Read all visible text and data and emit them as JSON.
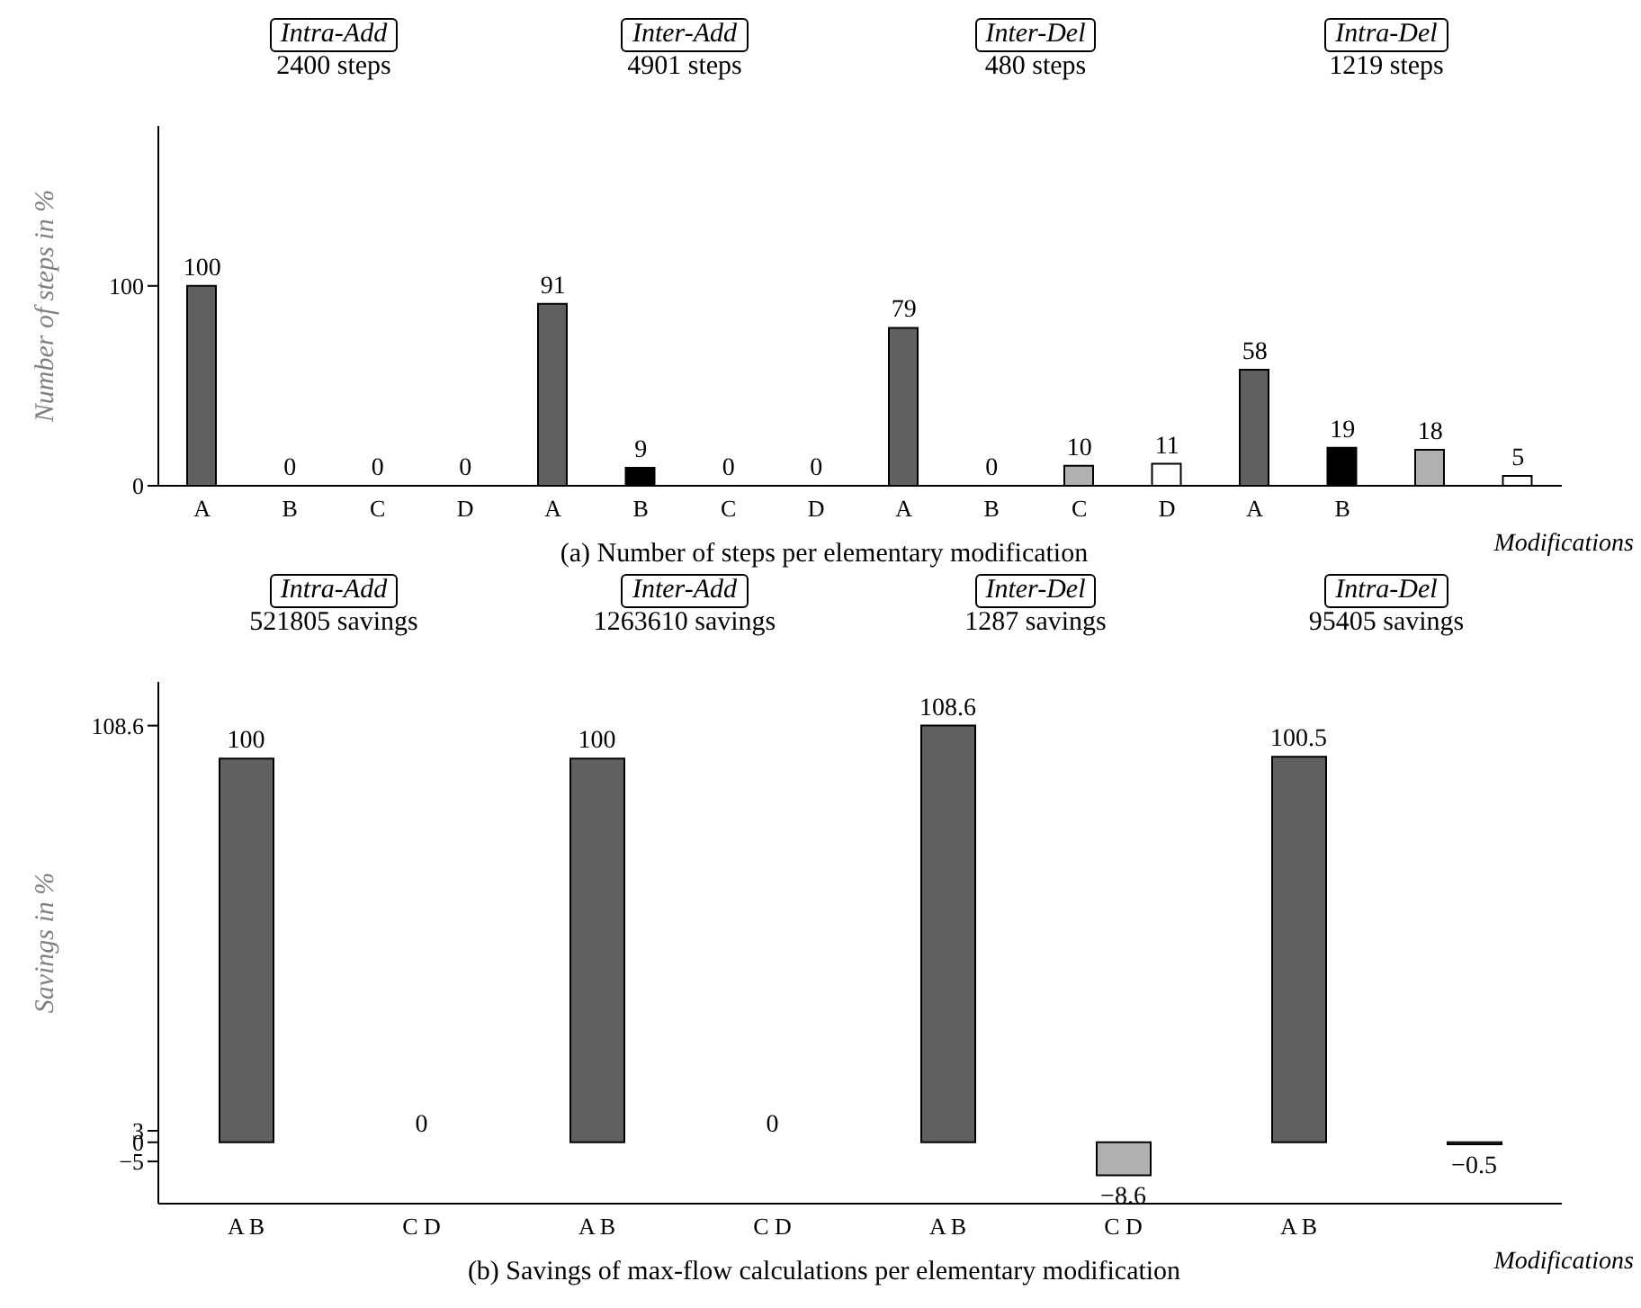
{
  "chart_data": [
    {
      "type": "bar",
      "title": "(a) Number of steps per elementary modification",
      "ylabel": "Number of steps in %",
      "xlabel": "Modifications",
      "categories": [
        "A",
        "B",
        "C",
        "D",
        "A",
        "B",
        "C",
        "D",
        "A",
        "B",
        "C",
        "D",
        "A",
        "B",
        null,
        null
      ],
      "values": [
        100,
        0,
        0,
        0,
        91,
        9,
        0,
        0,
        79,
        0,
        10,
        11,
        58,
        19,
        18,
        5
      ],
      "colors": [
        "#606060",
        "#000000",
        "#b0b0b0",
        "#ffffff",
        "#606060",
        "#000000",
        "#b0b0b0",
        "#ffffff",
        "#606060",
        "#000000",
        "#b0b0b0",
        "#ffffff",
        "#606060",
        "#000000",
        "#b0b0b0",
        "#ffffff"
      ],
      "ylim": [
        0,
        180
      ],
      "yticks": [
        0,
        100
      ],
      "data_labels": true,
      "grid": false,
      "legend": false,
      "annotations": [
        "Intra-Add",
        "2400 steps",
        "Inter-Add",
        "4901 steps",
        "Inter-Del",
        "480 steps",
        "Intra-Del",
        "1219 steps"
      ]
    },
    {
      "type": "bar",
      "title": "(b) Savings of max-flow calculations per elementary modification",
      "ylabel": "Savings in %",
      "xlabel": "Modifications",
      "categories": [
        "A B",
        "C D",
        "A B",
        "C D",
        "A B",
        "C D",
        "A B",
        null
      ],
      "values": [
        100,
        0,
        100,
        0,
        108.6,
        -8.6,
        100.5,
        -0.5
      ],
      "colors": [
        "#606060",
        "#b0b0b0",
        "#606060",
        "#b0b0b0",
        "#606060",
        "#b0b0b0",
        "#606060",
        "#b0b0b0"
      ],
      "ylim": [
        -16,
        120
      ],
      "yticks": [
        -5,
        0,
        3,
        108.6
      ],
      "data_labels": true,
      "grid": false,
      "legend": false,
      "annotations": [
        "Intra-Add",
        "521805 savings",
        "Inter-Add",
        "1263610 savings",
        "Inter-Del",
        "1287 savings",
        "Intra-Del",
        "95405 savings"
      ]
    }
  ]
}
